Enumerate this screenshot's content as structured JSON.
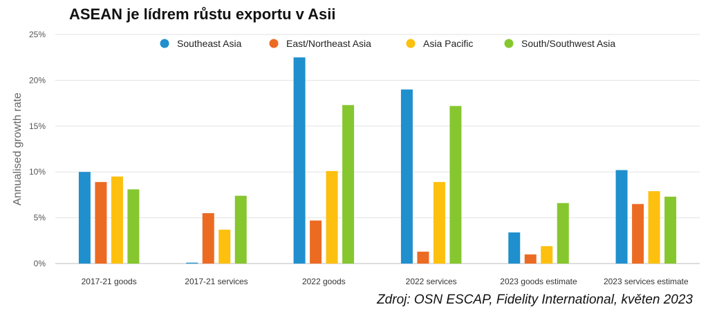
{
  "title": "ASEAN je lídrem růstu exportu v Asii",
  "source": "Zdroj: OSN ESCAP, Fidelity International, květen 2023",
  "chart_data": {
    "type": "bar",
    "title": "ASEAN je lídrem růstu exportu v Asii",
    "ylabel": "Annualised growth rate",
    "xlabel": "",
    "ylim": [
      0,
      25
    ],
    "yticks": [
      0,
      5,
      10,
      15,
      20,
      25
    ],
    "ytick_labels": [
      "0%",
      "5%",
      "10%",
      "15%",
      "20%",
      "25%"
    ],
    "grid": true,
    "legend_position": "top",
    "categories": [
      "2017-21 goods",
      "2017-21 services",
      "2022 goods",
      "2022 services",
      "2023 goods estimate",
      "2023 services estimate"
    ],
    "series": [
      {
        "name": "Southeast Asia",
        "color": "#1f8fce",
        "values": [
          10.0,
          0.1,
          22.5,
          19.0,
          3.4,
          10.2
        ]
      },
      {
        "name": "East/Northeast Asia",
        "color": "#ec6b23",
        "values": [
          8.9,
          5.5,
          4.7,
          1.3,
          1.0,
          6.5
        ]
      },
      {
        "name": "Asia Pacific",
        "color": "#fdc00e",
        "values": [
          9.5,
          3.7,
          10.1,
          8.9,
          1.9,
          7.9
        ]
      },
      {
        "name": "South/Southwest Asia",
        "color": "#86c72f",
        "values": [
          8.1,
          7.4,
          17.3,
          17.2,
          6.6,
          7.3
        ]
      }
    ]
  }
}
